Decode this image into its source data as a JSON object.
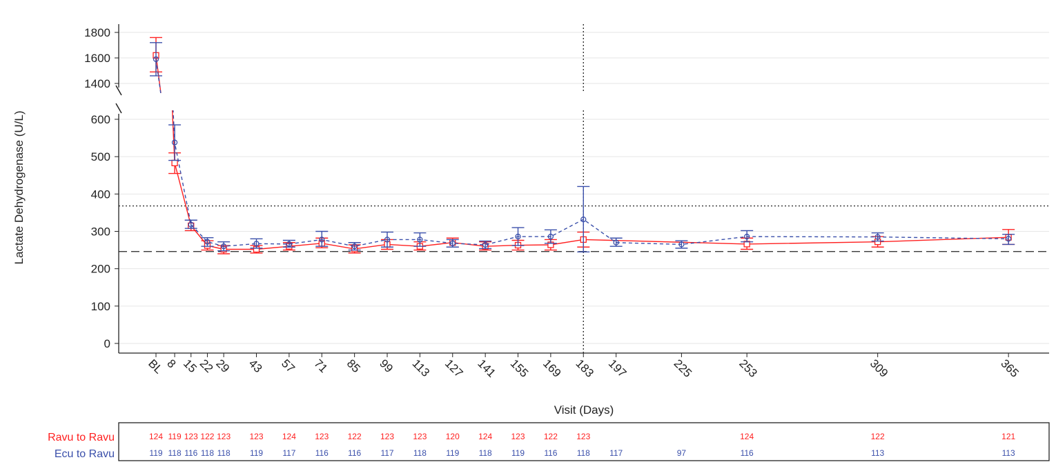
{
  "chart_data": {
    "type": "line",
    "title": "",
    "xlabel": "Visit (Days)",
    "ylabel": "Lactate Dehydrogenase (U/L)",
    "x_tick_labels": [
      "BL",
      "8",
      "15",
      "22",
      "29",
      "43",
      "57",
      "71",
      "85",
      "99",
      "113",
      "127",
      "141",
      "155",
      "169",
      "183",
      "197",
      "225",
      "253",
      "309",
      "365"
    ],
    "x_days": [
      0,
      8,
      15,
      22,
      29,
      43,
      57,
      71,
      85,
      99,
      113,
      127,
      141,
      155,
      169,
      183,
      197,
      225,
      253,
      309,
      365
    ],
    "y_ticks_lower": [
      0,
      100,
      200,
      300,
      400,
      500,
      600
    ],
    "y_ticks_upper": [
      1400,
      1600,
      1800
    ],
    "y_axis_break": [
      600,
      1400
    ],
    "grid": "horizontal",
    "reference_lines": {
      "horizontal_dotted": 368,
      "horizontal_dashed": 246,
      "vertical_dotted_day": 183
    },
    "colors": {
      "ravu": "#ff2020",
      "ecu": "#3a4faa"
    },
    "series": [
      {
        "name": "Ravu to Ravu",
        "style": "solid-square",
        "x": [
          0,
          8,
          15,
          22,
          29,
          43,
          57,
          71,
          85,
          99,
          113,
          127,
          141,
          155,
          169,
          183,
          253,
          309,
          365
        ],
        "values": [
          1620,
          483,
          315,
          262,
          252,
          252,
          260,
          268,
          253,
          265,
          260,
          270,
          260,
          263,
          264,
          278,
          266,
          272,
          284
        ],
        "lower": [
          1490,
          455,
          302,
          250,
          240,
          242,
          250,
          256,
          242,
          252,
          250,
          258,
          250,
          250,
          250,
          258,
          252,
          258,
          265
        ],
        "upper": [
          1760,
          510,
          330,
          275,
          262,
          262,
          270,
          282,
          264,
          278,
          272,
          282,
          272,
          276,
          278,
          298,
          282,
          286,
          305
        ],
        "n": [
          "124",
          "119",
          "123",
          "122",
          "123",
          "123",
          "124",
          "123",
          "122",
          "123",
          "123",
          "120",
          "124",
          "123",
          "122",
          "123",
          "124",
          "122",
          "121"
        ]
      },
      {
        "name": "Ecu to Ravu",
        "style": "dashed-circle",
        "x": [
          0,
          8,
          15,
          22,
          29,
          43,
          57,
          71,
          85,
          99,
          113,
          127,
          141,
          155,
          169,
          183,
          197,
          225,
          253,
          309,
          365
        ],
        "values": [
          1590,
          538,
          318,
          272,
          260,
          267,
          266,
          278,
          260,
          278,
          278,
          268,
          264,
          286,
          286,
          332,
          270,
          265,
          286,
          285,
          280
        ],
        "lower": [
          1460,
          490,
          308,
          260,
          248,
          255,
          258,
          260,
          250,
          258,
          260,
          258,
          254,
          262,
          268,
          245,
          260,
          255,
          272,
          274,
          265
        ],
        "upper": [
          1720,
          585,
          330,
          283,
          272,
          280,
          276,
          300,
          270,
          298,
          296,
          278,
          274,
          310,
          304,
          420,
          282,
          275,
          302,
          296,
          292
        ],
        "n": [
          "119",
          "118",
          "116",
          "118",
          "118",
          "119",
          "117",
          "116",
          "116",
          "117",
          "118",
          "119",
          "118",
          "119",
          "116",
          "118",
          "117",
          "97",
          "116",
          "113",
          "113"
        ]
      }
    ]
  }
}
